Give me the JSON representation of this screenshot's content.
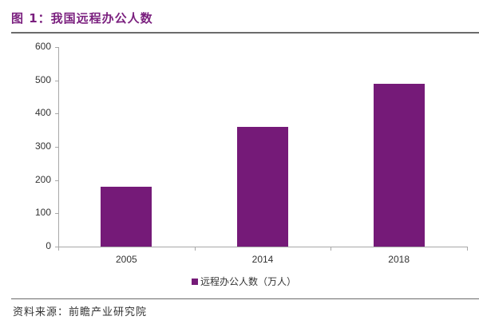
{
  "header": {
    "title": "图 1：我国远程办公人数"
  },
  "footer": {
    "source": "资料来源：前瞻产业研究院"
  },
  "legend": {
    "label": "远程办公人数（万人）",
    "color": "#751a78"
  },
  "y_ticks": [
    "0",
    "100",
    "200",
    "300",
    "400",
    "500",
    "600"
  ],
  "x_labels": [
    "2005",
    "2014",
    "2018"
  ],
  "chart_data": {
    "type": "bar",
    "title": "图 1：我国远程办公人数",
    "categories": [
      "2005",
      "2014",
      "2018"
    ],
    "series": [
      {
        "name": "远程办公人数（万人）",
        "values": [
          180,
          360,
          490
        ],
        "color": "#751a78"
      }
    ],
    "xlabel": "",
    "ylabel": "",
    "ylim": [
      0,
      600
    ],
    "yticks": [
      0,
      100,
      200,
      300,
      400,
      500,
      600
    ],
    "grid": false,
    "legend_position": "bottom",
    "source": "资料来源：前瞻产业研究院"
  }
}
